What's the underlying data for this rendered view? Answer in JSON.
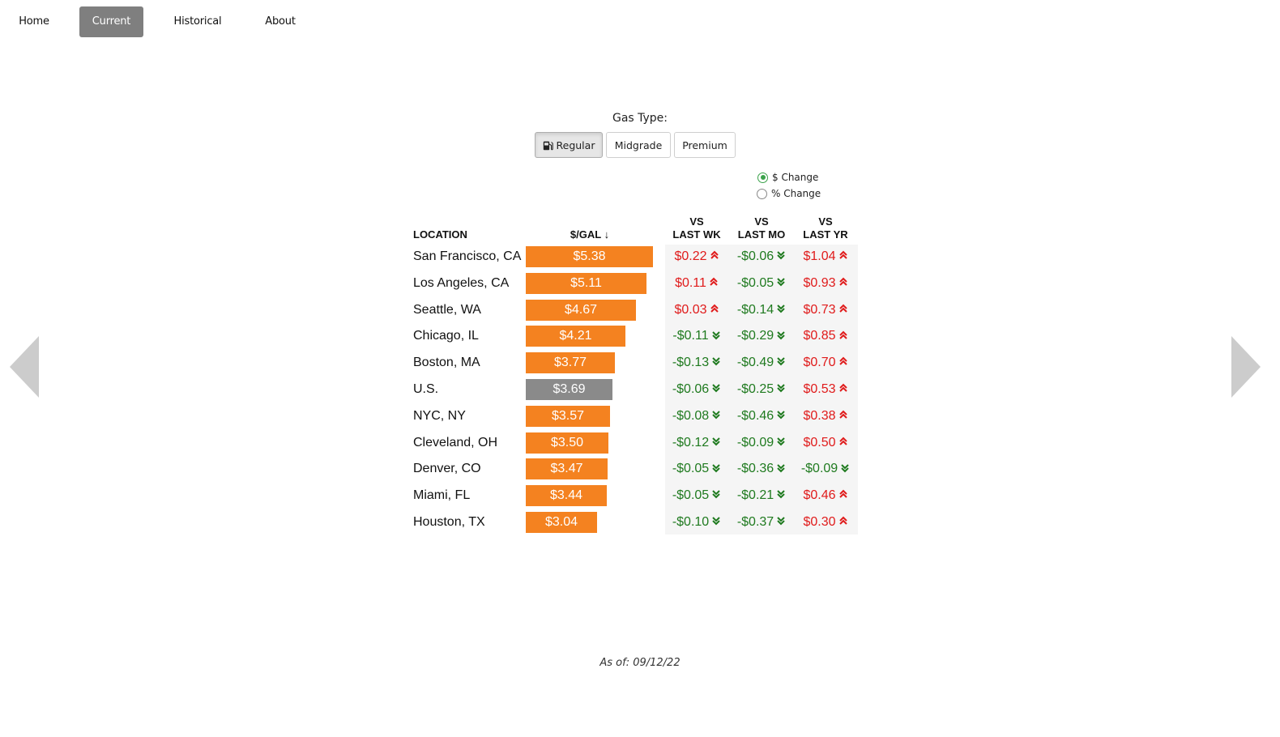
{
  "nav": {
    "items": [
      {
        "label": "Home",
        "active": false
      },
      {
        "label": "Current",
        "active": true
      },
      {
        "label": "Historical",
        "active": false
      },
      {
        "label": "About",
        "active": false
      }
    ]
  },
  "gas_type": {
    "label": "Gas Type:",
    "buttons": [
      {
        "label": "Regular",
        "active": true,
        "icon": "gas-pump-icon"
      },
      {
        "label": "Midgrade",
        "active": false
      },
      {
        "label": "Premium",
        "active": false
      }
    ]
  },
  "change_mode": {
    "options": [
      {
        "label": "$ Change",
        "checked": true
      },
      {
        "label": "% Change",
        "checked": false
      }
    ]
  },
  "table": {
    "headers": {
      "location": "LOCATION",
      "price": "$/GAL ↓",
      "last_wk_1": "VS",
      "last_wk_2": "LAST WK",
      "last_mo_1": "VS",
      "last_mo_2": "LAST MO",
      "last_yr_1": "VS",
      "last_yr_2": "LAST YR"
    },
    "colors": {
      "bar": "#f48220",
      "us_bar": "#8a8a8a",
      "up": "#e01b1b",
      "down": "#1f7a1f"
    },
    "rows": [
      {
        "location": "San Francisco, CA",
        "price": 5.38,
        "price_label": "$5.38",
        "wk": "$0.22",
        "wk_dir": "up",
        "mo": "-$0.06",
        "mo_dir": "down",
        "yr": "$1.04",
        "yr_dir": "up"
      },
      {
        "location": "Los Angeles, CA",
        "price": 5.11,
        "price_label": "$5.11",
        "wk": "$0.11",
        "wk_dir": "up",
        "mo": "-$0.05",
        "mo_dir": "down",
        "yr": "$0.93",
        "yr_dir": "up"
      },
      {
        "location": "Seattle, WA",
        "price": 4.67,
        "price_label": "$4.67",
        "wk": "$0.03",
        "wk_dir": "up",
        "mo": "-$0.14",
        "mo_dir": "down",
        "yr": "$0.73",
        "yr_dir": "up"
      },
      {
        "location": "Chicago, IL",
        "price": 4.21,
        "price_label": "$4.21",
        "wk": "-$0.11",
        "wk_dir": "down",
        "mo": "-$0.29",
        "mo_dir": "down",
        "yr": "$0.85",
        "yr_dir": "up"
      },
      {
        "location": "Boston, MA",
        "price": 3.77,
        "price_label": "$3.77",
        "wk": "-$0.13",
        "wk_dir": "down",
        "mo": "-$0.49",
        "mo_dir": "down",
        "yr": "$0.70",
        "yr_dir": "up"
      },
      {
        "location": "U.S.",
        "price": 3.69,
        "price_label": "$3.69",
        "us": true,
        "wk": "-$0.06",
        "wk_dir": "down",
        "mo": "-$0.25",
        "mo_dir": "down",
        "yr": "$0.53",
        "yr_dir": "up"
      },
      {
        "location": "NYC, NY",
        "price": 3.57,
        "price_label": "$3.57",
        "wk": "-$0.08",
        "wk_dir": "down",
        "mo": "-$0.46",
        "mo_dir": "down",
        "yr": "$0.38",
        "yr_dir": "up"
      },
      {
        "location": "Cleveland, OH",
        "price": 3.5,
        "price_label": "$3.50",
        "wk": "-$0.12",
        "wk_dir": "down",
        "mo": "-$0.09",
        "mo_dir": "down",
        "yr": "$0.50",
        "yr_dir": "up"
      },
      {
        "location": "Denver, CO",
        "price": 3.47,
        "price_label": "$3.47",
        "wk": "-$0.05",
        "wk_dir": "down",
        "mo": "-$0.36",
        "mo_dir": "down",
        "yr": "-$0.09",
        "yr_dir": "down"
      },
      {
        "location": "Miami, FL",
        "price": 3.44,
        "price_label": "$3.44",
        "wk": "-$0.05",
        "wk_dir": "down",
        "mo": "-$0.21",
        "mo_dir": "down",
        "yr": "$0.46",
        "yr_dir": "up"
      },
      {
        "location": "Houston, TX",
        "price": 3.04,
        "price_label": "$3.04",
        "wk": "-$0.10",
        "wk_dir": "down",
        "mo": "-$0.37",
        "mo_dir": "down",
        "yr": "$0.30",
        "yr_dir": "up"
      }
    ]
  },
  "footer": {
    "as_of": "As of: 09/12/22"
  },
  "side_nav": {
    "prev_icon": "triangle-left-icon",
    "next_icon": "triangle-right-icon"
  }
}
